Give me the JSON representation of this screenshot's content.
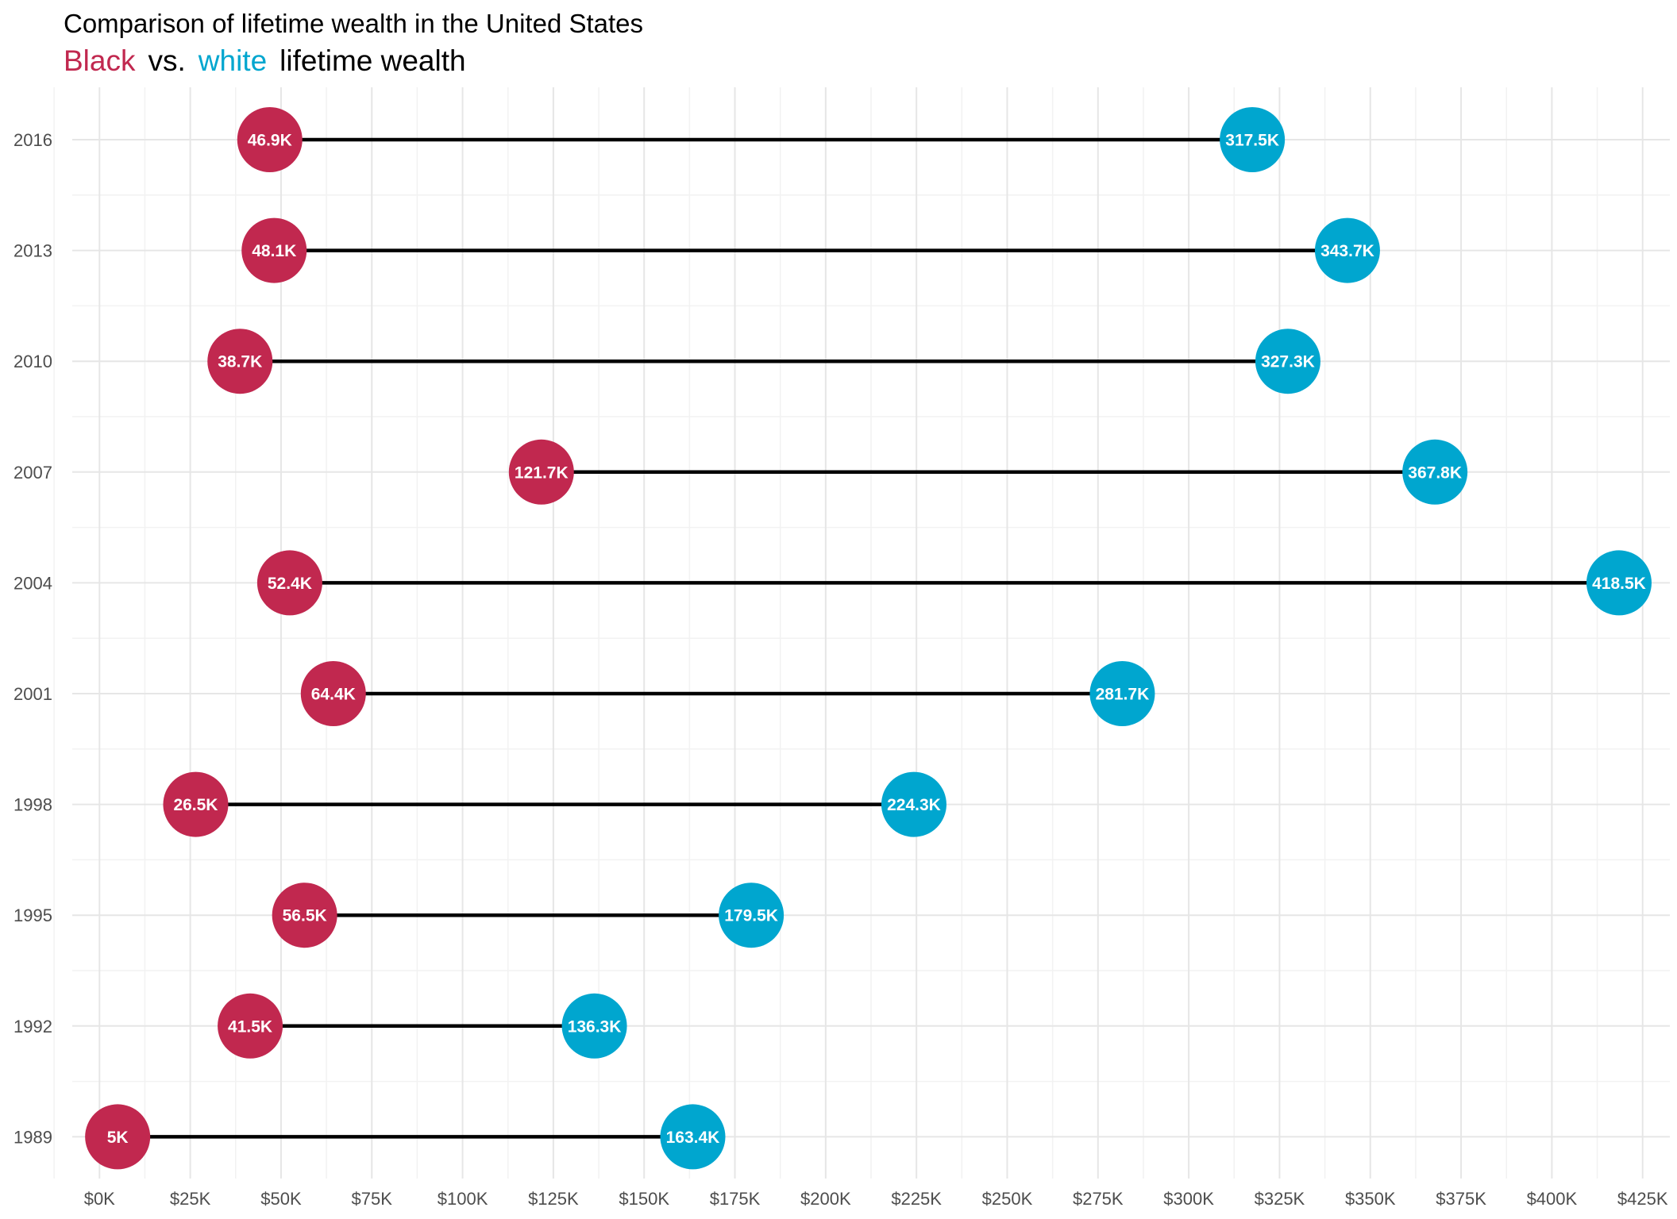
{
  "chart_data": {
    "type": "dumbbell",
    "title": "Comparison of lifetime wealth in the United States",
    "subtitle": {
      "parts": [
        {
          "text": "Black",
          "color": "#C1284F"
        },
        {
          "text": "vs.",
          "color": "#000000"
        },
        {
          "text": "white",
          "color": "#00A6CF"
        },
        {
          "text": "lifetime wealth",
          "color": "#000000"
        }
      ]
    },
    "xlabel": "",
    "ylabel": "",
    "xlim": [
      -7500,
      432500
    ],
    "x_ticks": [
      0,
      25000,
      50000,
      75000,
      100000,
      125000,
      150000,
      175000,
      200000,
      225000,
      250000,
      275000,
      300000,
      325000,
      350000,
      375000,
      400000,
      425000
    ],
    "x_tick_labels": [
      "$0K",
      "$25K",
      "$50K",
      "$75K",
      "$100K",
      "$125K",
      "$150K",
      "$175K",
      "$200K",
      "$225K",
      "$250K",
      "$275K",
      "$300K",
      "$325K",
      "$350K",
      "$375K",
      "$400K",
      "$425K"
    ],
    "grid": true,
    "categories": [
      "2016",
      "2013",
      "2010",
      "2007",
      "2004",
      "2001",
      "1998",
      "1995",
      "1992",
      "1989"
    ],
    "series": [
      {
        "name": "Black",
        "color": "#C1284F",
        "values": [
          46900,
          48100,
          38700,
          121700,
          52400,
          64400,
          26500,
          56500,
          41500,
          5000
        ],
        "labels": [
          "46.9K",
          "48.1K",
          "38.7K",
          "121.7K",
          "52.4K",
          "64.4K",
          "26.5K",
          "56.5K",
          "41.5K",
          "5K"
        ]
      },
      {
        "name": "white",
        "color": "#00A6CF",
        "values": [
          317500,
          343700,
          327300,
          367800,
          418500,
          281700,
          224300,
          179500,
          136300,
          163400
        ],
        "labels": [
          "317.5K",
          "343.7K",
          "327.3K",
          "367.8K",
          "418.5K",
          "281.7K",
          "224.3K",
          "179.5K",
          "136.3K",
          "163.4K"
        ]
      }
    ]
  }
}
